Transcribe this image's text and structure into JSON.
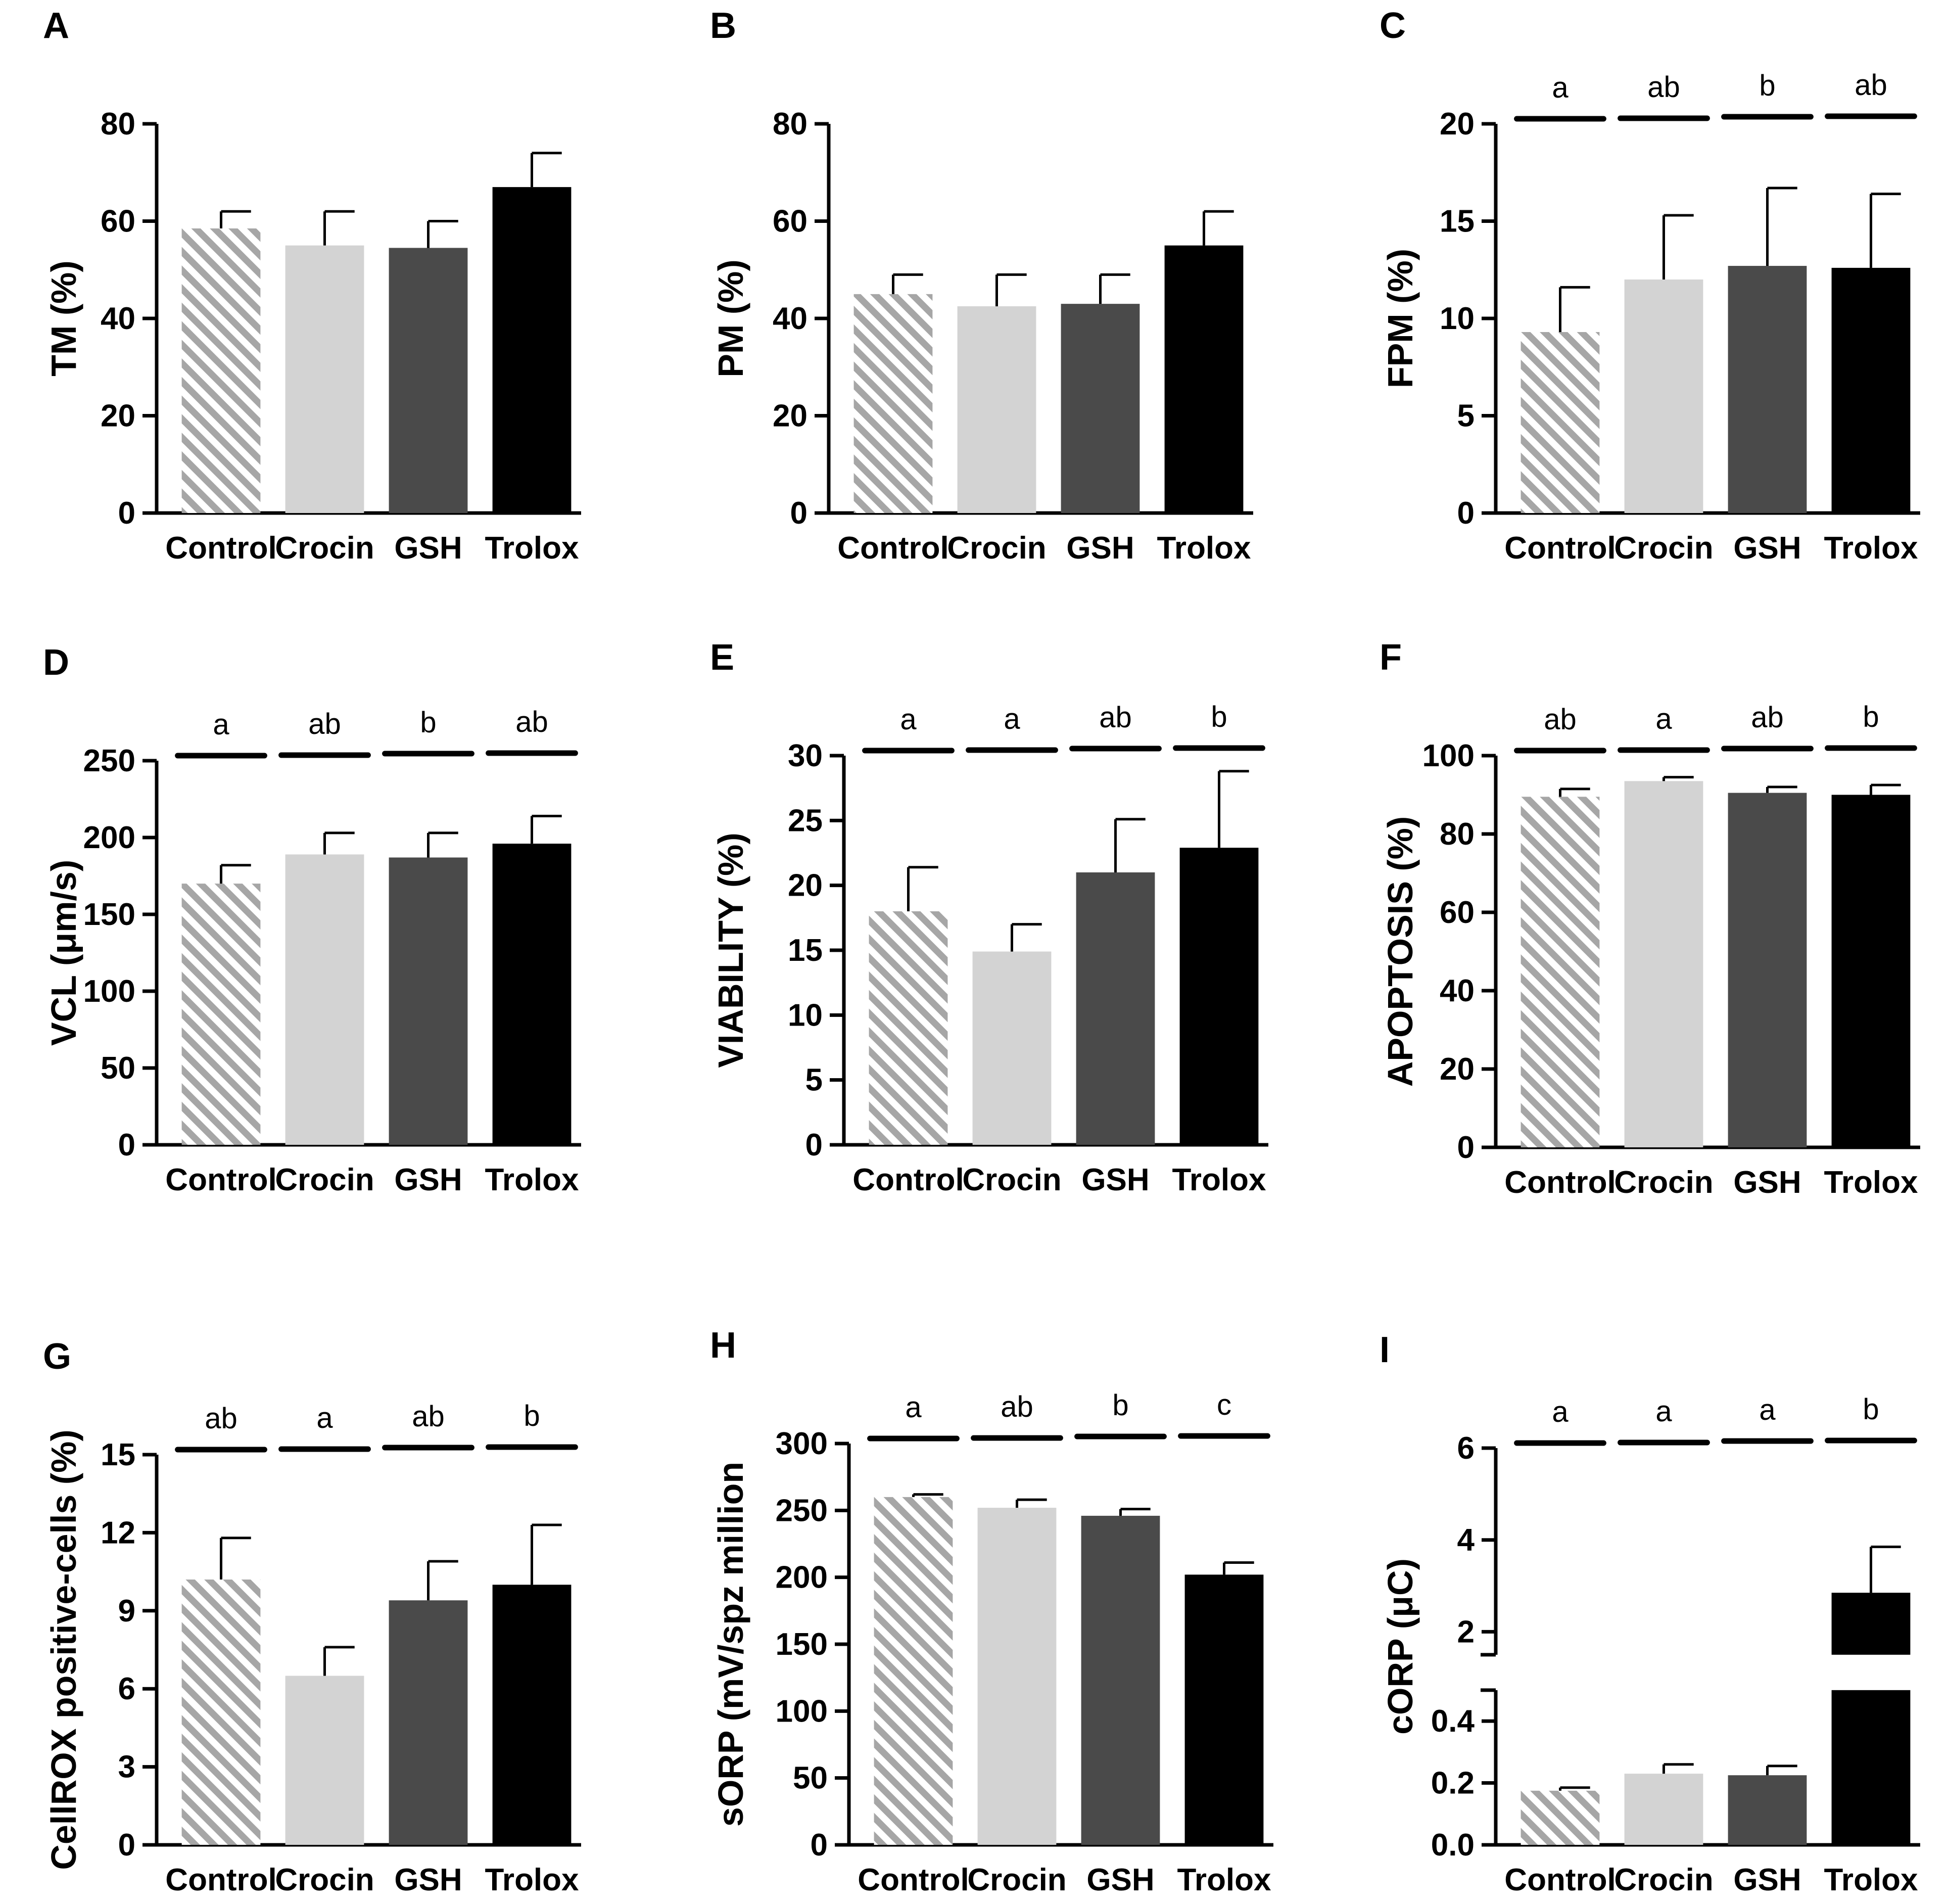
{
  "figure": {
    "categories": [
      "Control",
      "Crocin",
      "GSH",
      "Trolox"
    ],
    "colors": {
      "control_pattern": "#a6a6a6",
      "crocin": "#d3d3d3",
      "gsh": "#4a4a4a",
      "trolox": "#000000",
      "axis": "#000000"
    }
  },
  "chart_data": [
    {
      "panel": "A",
      "type": "bar",
      "ylabel": "TM (%)",
      "categories": [
        "Control",
        "Crocin",
        "GSH",
        "Trolox"
      ],
      "values": [
        58.5,
        55,
        54.5,
        67
      ],
      "errors": [
        3.5,
        7,
        5.5,
        7
      ],
      "ylim": [
        0,
        80
      ],
      "yticks": [
        "0",
        "20",
        "40",
        "60",
        "80"
      ],
      "letters": []
    },
    {
      "panel": "B",
      "type": "bar",
      "ylabel": "PM (%)",
      "categories": [
        "Control",
        "Crocin",
        "GSH",
        "Trolox"
      ],
      "values": [
        45,
        42.5,
        43,
        55
      ],
      "errors": [
        4,
        6.5,
        6,
        7
      ],
      "ylim": [
        0,
        80
      ],
      "yticks": [
        "0",
        "20",
        "40",
        "60",
        "80"
      ],
      "letters": []
    },
    {
      "panel": "C",
      "type": "bar",
      "ylabel": "FPM (%)",
      "categories": [
        "Control",
        "Crocin",
        "GSH",
        "Trolox"
      ],
      "values": [
        9.3,
        12,
        12.7,
        12.6
      ],
      "errors": [
        2.3,
        3.3,
        4,
        3.8
      ],
      "ylim": [
        0,
        20
      ],
      "yticks": [
        "0",
        "5",
        "10",
        "15",
        "20"
      ],
      "letters": [
        "a",
        "ab",
        "b",
        "ab"
      ]
    },
    {
      "panel": "D",
      "type": "bar",
      "ylabel": "VCL (μm/s)",
      "categories": [
        "Control",
        "Crocin",
        "GSH",
        "Trolox"
      ],
      "values": [
        170,
        189,
        187,
        196
      ],
      "errors": [
        12,
        14,
        16,
        18
      ],
      "ylim": [
        0,
        250
      ],
      "yticks": [
        "0",
        "50",
        "100",
        "150",
        "200",
        "250"
      ],
      "letters": [
        "a",
        "ab",
        "b",
        "ab"
      ]
    },
    {
      "panel": "E",
      "type": "bar",
      "ylabel": "VIABILITY (%)",
      "categories": [
        "Control",
        "Crocin",
        "GSH",
        "Trolox"
      ],
      "values": [
        18,
        14.9,
        21,
        22.9
      ],
      "errors": [
        3.4,
        2.1,
        4.1,
        5.9
      ],
      "ylim": [
        0,
        30
      ],
      "yticks": [
        "0",
        "5",
        "10",
        "15",
        "20",
        "25",
        "30"
      ],
      "letters": [
        "a",
        "a",
        "ab",
        "b"
      ]
    },
    {
      "panel": "F",
      "type": "bar",
      "ylabel": "APOPTOSIS (%)",
      "categories": [
        "Control",
        "Crocin",
        "GSH",
        "Trolox"
      ],
      "values": [
        89.5,
        93.5,
        90.5,
        90
      ],
      "errors": [
        2,
        1,
        1.5,
        2.5
      ],
      "ylim": [
        0,
        100
      ],
      "yticks": [
        "0",
        "20",
        "40",
        "60",
        "80",
        "100"
      ],
      "letters": [
        "ab",
        "a",
        "ab",
        "b"
      ]
    },
    {
      "panel": "G",
      "type": "bar",
      "ylabel": "CellROX positive-cells (%)",
      "categories": [
        "Control",
        "Crocin",
        "GSH",
        "Trolox"
      ],
      "values": [
        10.2,
        6.5,
        9.4,
        10
      ],
      "errors": [
        1.6,
        1.1,
        1.5,
        2.3
      ],
      "ylim": [
        0,
        15
      ],
      "yticks": [
        "0",
        "3",
        "6",
        "9",
        "12",
        "15"
      ],
      "letters": [
        "ab",
        "a",
        "ab",
        "b"
      ]
    },
    {
      "panel": "H",
      "type": "bar",
      "ylabel": "sORP (mV/spz million",
      "categories": [
        "Control",
        "Crocin",
        "GSH",
        "Trolox"
      ],
      "values": [
        260,
        252,
        246,
        202
      ],
      "errors": [
        2,
        6,
        5,
        9
      ],
      "ylim": [
        0,
        300
      ],
      "yticks": [
        "0",
        "50",
        "100",
        "150",
        "200",
        "250",
        "300"
      ],
      "letters": [
        "a",
        "ab",
        "b",
        "c"
      ]
    },
    {
      "panel": "I",
      "type": "bar",
      "ylabel": "cORP (μC)",
      "categories": [
        "Control",
        "Crocin",
        "GSH",
        "Trolox"
      ],
      "values": [
        0.175,
        0.23,
        0.225,
        2.85
      ],
      "errors": [
        0.01,
        0.03,
        0.03,
        1.0
      ],
      "ylim": [
        0,
        6
      ],
      "axis_break": [
        0.5,
        1.5
      ],
      "yticks_lower": [
        "0.0",
        "0.2",
        "0.4"
      ],
      "yticks_upper": [
        "2",
        "4",
        "6"
      ],
      "letters": [
        "a",
        "a",
        "a",
        "b"
      ]
    }
  ]
}
